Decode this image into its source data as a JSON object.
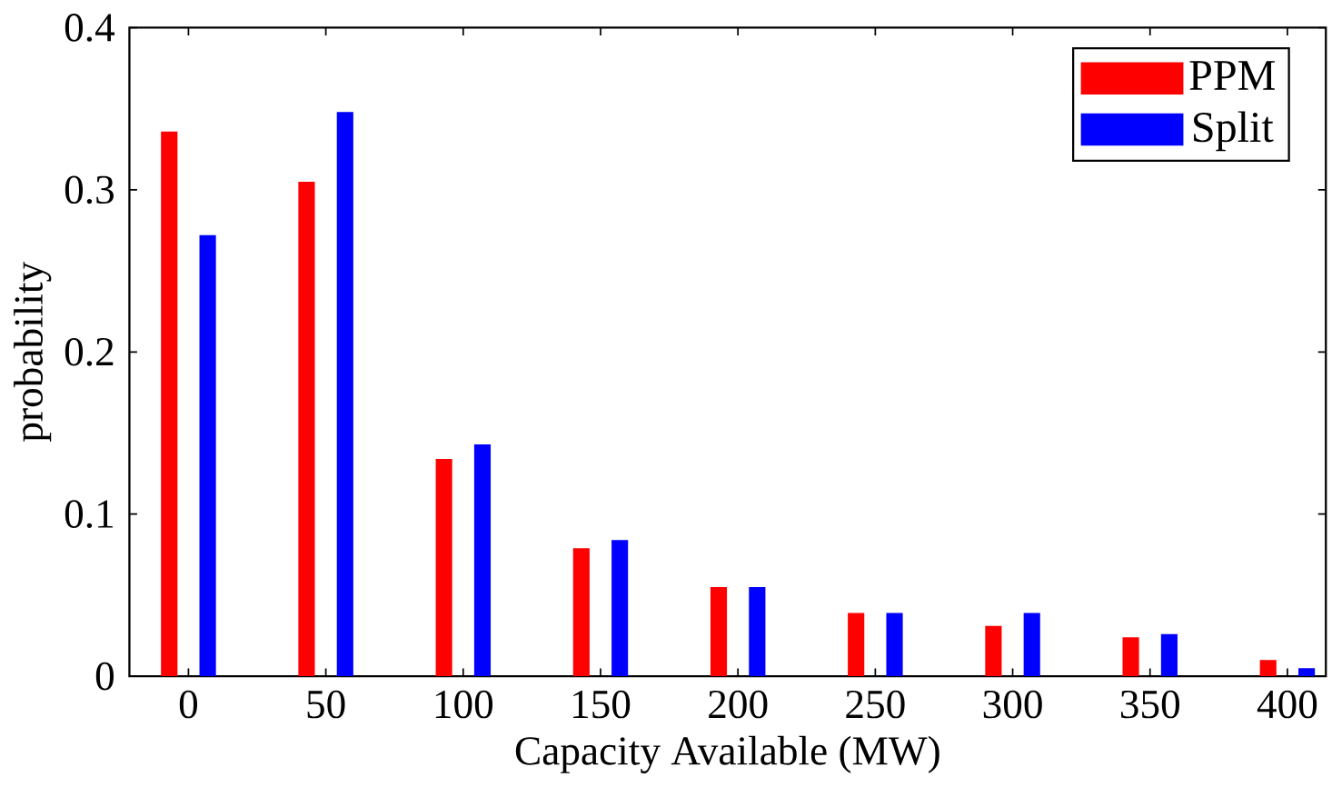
{
  "chart_data": {
    "type": "bar",
    "xlabel": "Capacity Available (MW)",
    "ylabel": "probability",
    "categories": [
      "0",
      "50",
      "100",
      "150",
      "200",
      "250",
      "300",
      "350",
      "400"
    ],
    "series": [
      {
        "name": "PPM",
        "color": "#ff0000",
        "values": [
          0.336,
          0.305,
          0.134,
          0.079,
          0.055,
          0.039,
          0.031,
          0.024,
          0.01
        ]
      },
      {
        "name": "Split",
        "color": "#0000ff",
        "values": [
          0.272,
          0.348,
          0.143,
          0.084,
          0.055,
          0.039,
          0.039,
          0.026,
          0.005
        ]
      }
    ],
    "ylim": [
      0,
      0.4
    ],
    "yticks": [
      0,
      0.1,
      0.2,
      0.3,
      0.4
    ],
    "legend": "top right"
  }
}
